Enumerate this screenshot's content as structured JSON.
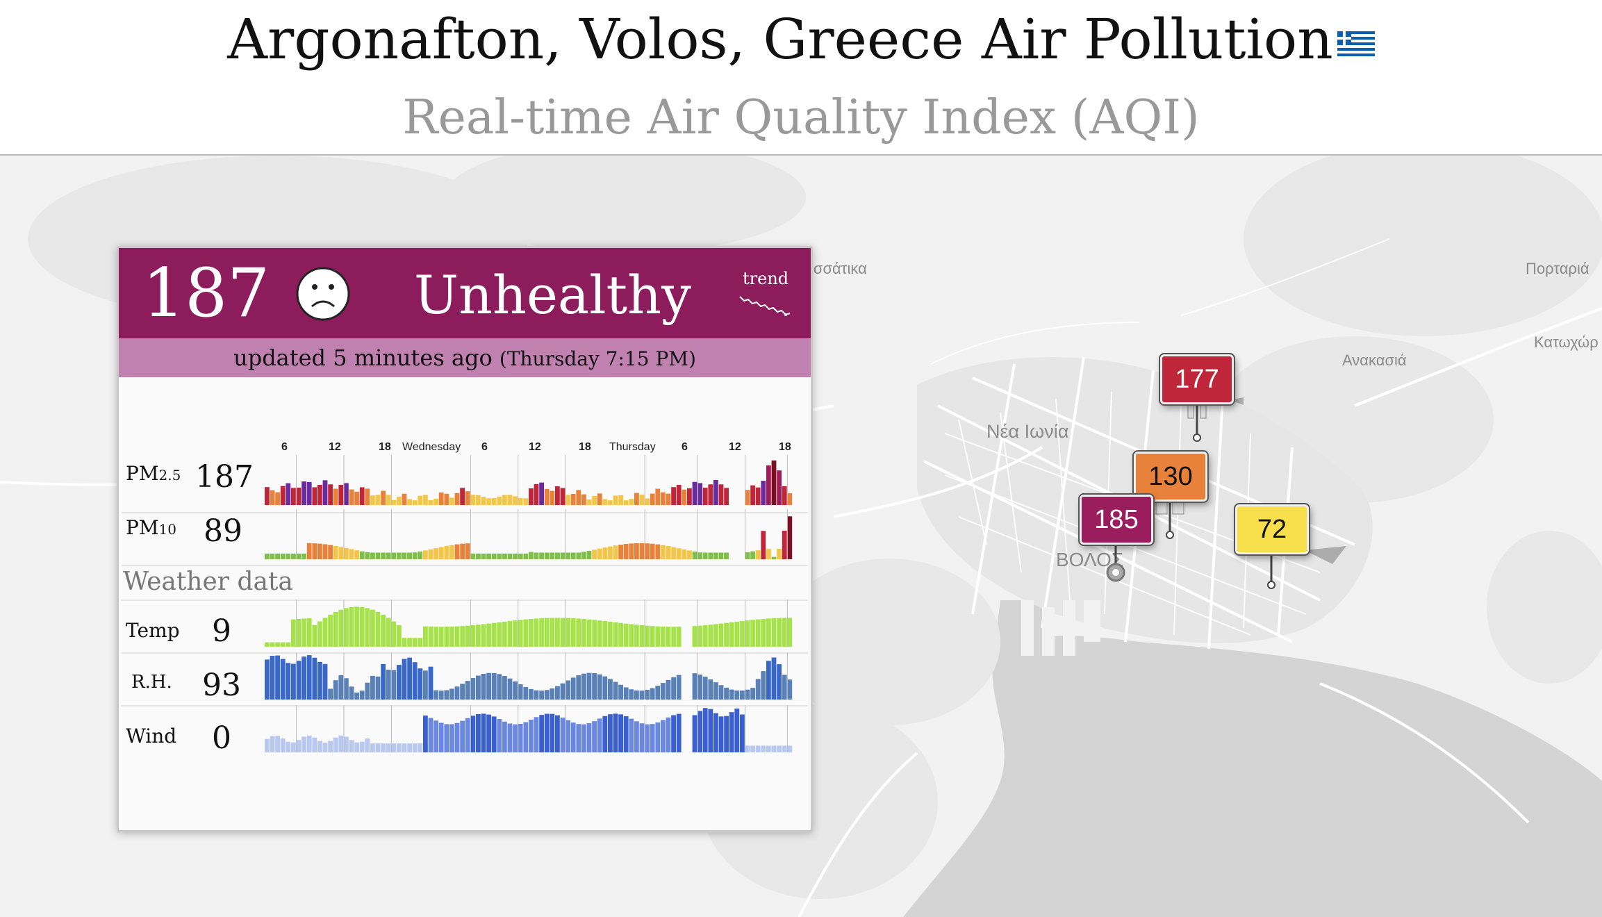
{
  "header": {
    "title": "Argonafton, Volos, Greece Air Pollution",
    "subtitle": "Real-time Air Quality Index (AQI)",
    "flag_icon": "greece-flag-icon"
  },
  "card": {
    "aqi_value": "187",
    "aqi_status": "Unhealthy",
    "face_icon": "sad-face-icon",
    "trend_label": "trend",
    "updated_text": "updated 5 minutes ago",
    "updated_time": "(Thursday 7:15 PM)",
    "colors": {
      "header_bg": "#8c1c5c",
      "update_bg": "#c080b0"
    },
    "day_ticks": [
      "6",
      "12",
      "18",
      "Wednesday",
      "6",
      "12",
      "18",
      "Thursday",
      "6",
      "12",
      "18"
    ],
    "rows": [
      {
        "label_main": "PM",
        "label_sub": "2.5",
        "value": "187"
      },
      {
        "label_main": "PM",
        "label_sub": "10",
        "value": "89"
      }
    ],
    "weather_title": "Weather data",
    "weather_rows": [
      {
        "label": "Temp",
        "value": "9"
      },
      {
        "label": "R.H.",
        "value": "93"
      },
      {
        "label": "Wind",
        "value": "0"
      }
    ]
  },
  "map": {
    "place_labels": [
      "ισσάτικα",
      "Πορταριά",
      "Κατωχώρ",
      "Ανακασιά",
      "Νέα Ιωνία",
      "ΒΟΛΟΣ"
    ],
    "stations": [
      {
        "value": "177",
        "color": "#c0263a",
        "text_color": "#ffffff"
      },
      {
        "value": "130",
        "color": "#e8823a",
        "text_color": "#111111"
      },
      {
        "value": "185",
        "color": "#9a1e5e",
        "text_color": "#ffffff"
      },
      {
        "value": "72",
        "color": "#f6df4a",
        "text_color": "#111111"
      }
    ]
  }
}
